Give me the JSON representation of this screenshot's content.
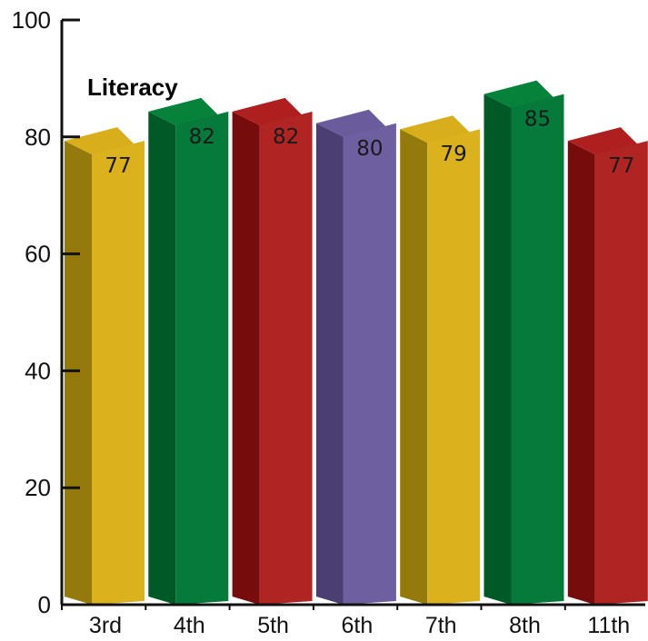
{
  "chart_data": {
    "type": "bar",
    "title": "Literacy",
    "xlabel": "",
    "ylabel": "",
    "categories": [
      "3rd",
      "4th",
      "5th",
      "6th",
      "7th",
      "8th",
      "11th"
    ],
    "values": [
      77,
      82,
      82,
      80,
      79,
      85,
      77
    ],
    "ylim": [
      0,
      100
    ],
    "yticks": [
      0,
      20,
      40,
      60,
      80,
      100
    ],
    "grid": false,
    "legend": "none",
    "style": "3d-bars",
    "bar_colors": [
      {
        "front": "#DCB11E",
        "side": "#947A0C",
        "top": "#D8AE1C"
      },
      {
        "front": "#067A3A",
        "side": "#025928",
        "top": "#06823B"
      },
      {
        "front": "#B12424",
        "side": "#770C0C",
        "top": "#B01F1F"
      },
      {
        "front": "#6E5FA0",
        "side": "#4A3E72",
        "top": "#6A5C9C"
      },
      {
        "front": "#DCB11E",
        "side": "#947A0C",
        "top": "#D8AE1C"
      },
      {
        "front": "#067A3A",
        "side": "#025928",
        "top": "#06823B"
      },
      {
        "front": "#B12424",
        "side": "#770C0C",
        "top": "#B01F1F"
      }
    ]
  }
}
